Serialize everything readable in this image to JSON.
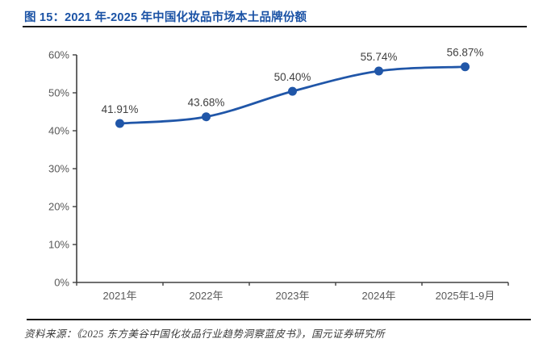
{
  "figure": {
    "label_and_title": "图 15：2021 年-2025 年中国化妆品市场本土品牌份额",
    "source_text": "资料来源：《2025 东方美谷中国化妆品行业趋势洞察蓝皮书》，国元证券研究所"
  },
  "colors": {
    "title_blue": "#1A52A5",
    "series_blue": "#2056A8",
    "axis": "#404040",
    "tick_label": "#595959",
    "data_label": "#404040",
    "rule_dark": "#1A1A1A",
    "background": "#FFFFFF"
  },
  "chart_data": {
    "type": "line",
    "title": "2021年-2025年中国化妆品市场本土品牌份额",
    "categories": [
      "2021年",
      "2022年",
      "2023年",
      "2024年",
      "2025年1-9月"
    ],
    "series": [
      {
        "name": "本土品牌份额",
        "values": [
          41.91,
          43.68,
          50.4,
          55.74,
          56.87
        ]
      }
    ],
    "data_labels": [
      "41.91%",
      "43.68%",
      "50.40%",
      "55.74%",
      "56.87%"
    ],
    "xlabel": "",
    "ylabel": "",
    "ylim": [
      0,
      60
    ],
    "y_tick_step": 10,
    "y_tick_labels": [
      "0%",
      "10%",
      "20%",
      "30%",
      "40%",
      "50%",
      "60%"
    ],
    "grid": false,
    "legend": "none",
    "smooth": true,
    "marker": "circle"
  }
}
